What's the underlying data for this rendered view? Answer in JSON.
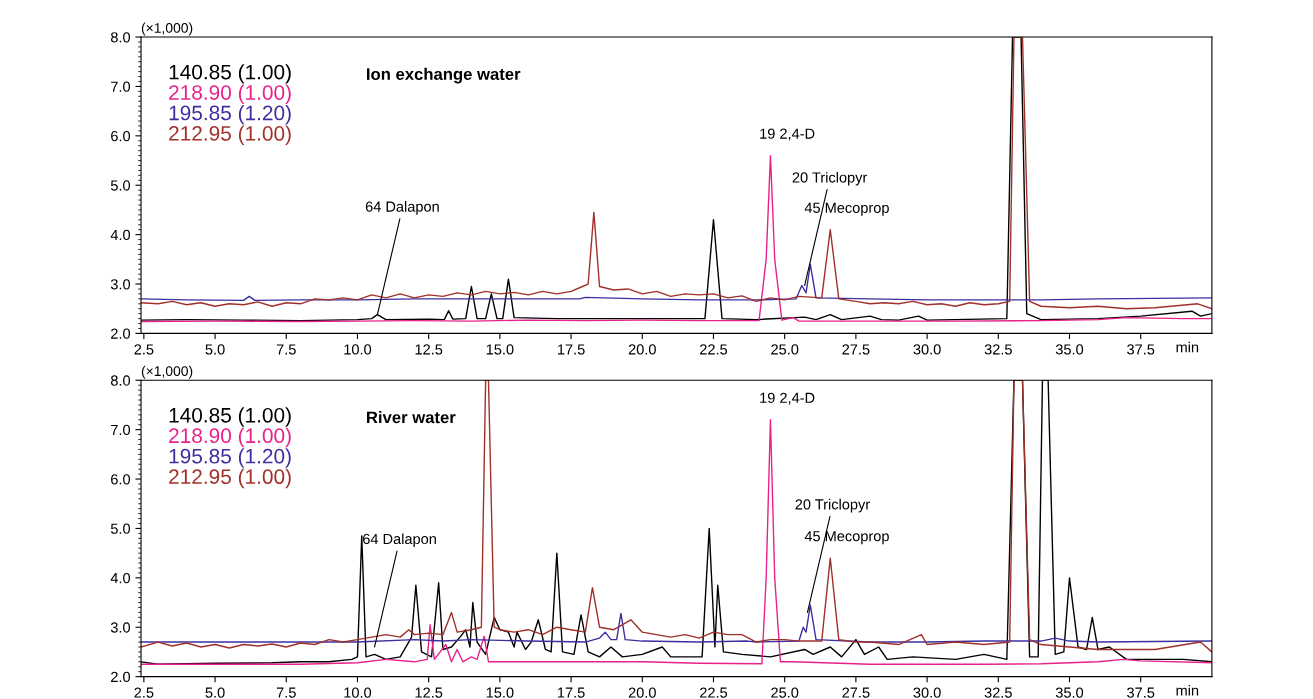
{
  "chart_data": [
    {
      "type": "line",
      "title": "Ion exchange water",
      "ylabel": "(×1,000)",
      "xlabel": "min",
      "legend": "top left",
      "xlim": [
        2.4,
        40.0
      ],
      "ylim": [
        2.0,
        8.0
      ],
      "xticks": [
        {
          "value": 2.5,
          "label": "2.5"
        },
        {
          "value": 5,
          "label": "5.0"
        },
        {
          "value": 7.5,
          "label": "7.5"
        },
        {
          "value": 10,
          "label": "10.0"
        },
        {
          "value": 12.5,
          "label": "12.5"
        },
        {
          "value": 15,
          "label": "15.0"
        },
        {
          "value": 17.5,
          "label": "17.5"
        },
        {
          "value": 20,
          "label": "20.0"
        },
        {
          "value": 22.5,
          "label": "22.5"
        },
        {
          "value": 25,
          "label": "25.0"
        },
        {
          "value": 27.5,
          "label": "27.5"
        },
        {
          "value": 30,
          "label": "30.0"
        },
        {
          "value": 32.5,
          "label": "32.5"
        },
        {
          "value": 35,
          "label": "35.0"
        },
        {
          "value": 37.5,
          "label": "37.5"
        }
      ],
      "yticks": [
        {
          "value": 2,
          "label": "2.0"
        },
        {
          "value": 3,
          "label": "3.0"
        },
        {
          "value": 4,
          "label": "4.0"
        },
        {
          "value": 5,
          "label": "5.0"
        },
        {
          "value": 6,
          "label": "6.0"
        },
        {
          "value": 7,
          "label": "7.0"
        },
        {
          "value": 8,
          "label": "8.0"
        }
      ],
      "annotations": [
        {
          "text": "64 Dalapon",
          "x": 10.7,
          "y": 2.38
        },
        {
          "text": "19 2,4-D",
          "x": 24.5,
          "y": 5.6
        },
        {
          "text": "20 Triclopyr",
          "x": 25.7,
          "y": 2.97
        },
        {
          "text": "45 Mecoprop",
          "x": 26.6,
          "y": 4.1
        }
      ],
      "series": [
        {
          "name": "140.85 (1.00)",
          "color": "#000000",
          "x": [
            2.4,
            4,
            6,
            8,
            10,
            10.5,
            10.7,
            11,
            12.5,
            13.05,
            13.2,
            13.35,
            13.8,
            14.0,
            14.2,
            14.5,
            14.7,
            14.9,
            15.1,
            15.3,
            15.5,
            17,
            19,
            21,
            22.2,
            22.5,
            22.8,
            24,
            25.7,
            26.1,
            26.6,
            27.0,
            28.0,
            28.4,
            29.0,
            29.7,
            30,
            32.8,
            33.0,
            33.3,
            33.5,
            34.0,
            36,
            37.5,
            39.3,
            39.6,
            40.0
          ],
          "values": [
            2.27,
            2.28,
            2.27,
            2.26,
            2.28,
            2.3,
            2.38,
            2.28,
            2.29,
            2.28,
            2.46,
            2.29,
            2.3,
            2.95,
            2.3,
            2.3,
            2.8,
            2.3,
            2.3,
            3.1,
            2.32,
            2.3,
            2.3,
            2.3,
            2.3,
            4.3,
            2.3,
            2.28,
            2.33,
            2.28,
            2.38,
            2.28,
            2.35,
            2.28,
            2.27,
            2.35,
            2.27,
            2.3,
            8.0,
            8.0,
            2.4,
            2.28,
            2.3,
            2.35,
            2.45,
            2.35,
            2.4
          ]
        },
        {
          "name": "218.90 (1.00)",
          "color": "#e8218c",
          "x": [
            2.4,
            5,
            8,
            10,
            12,
            14,
            16,
            18,
            20,
            22,
            24.1,
            24.35,
            24.5,
            24.65,
            24.9,
            25.3,
            25.5,
            28,
            31,
            34,
            36,
            37,
            39,
            40.0
          ],
          "values": [
            2.24,
            2.25,
            2.24,
            2.25,
            2.26,
            2.25,
            2.27,
            2.26,
            2.27,
            2.26,
            2.26,
            3.5,
            5.6,
            3.5,
            2.27,
            2.32,
            2.25,
            2.25,
            2.25,
            2.26,
            2.28,
            2.32,
            2.3,
            2.3
          ]
        },
        {
          "name": "195.85 (1.20)",
          "color": "#3c2fa0",
          "x": [
            2.4,
            4,
            6.0,
            6.2,
            6.4,
            8,
            10,
            12,
            14,
            16,
            17.8,
            18,
            20,
            22,
            24,
            25.4,
            25.6,
            25.75,
            25.9,
            26.1,
            28,
            30,
            32,
            34,
            36,
            40.0
          ],
          "values": [
            2.7,
            2.68,
            2.67,
            2.75,
            2.67,
            2.68,
            2.68,
            2.7,
            2.7,
            2.7,
            2.7,
            2.73,
            2.7,
            2.68,
            2.68,
            2.7,
            2.97,
            2.82,
            3.4,
            2.72,
            2.7,
            2.68,
            2.68,
            2.68,
            2.7,
            2.72
          ]
        },
        {
          "name": "212.95 (1.00)",
          "color": "#a0302a",
          "x": [
            2.4,
            3,
            3.5,
            4,
            4.5,
            5,
            5.5,
            6,
            6.5,
            7,
            7.5,
            8,
            8.5,
            9,
            9.5,
            10,
            10.5,
            11,
            11.5,
            12,
            12.5,
            13,
            13.5,
            14,
            14.5,
            15,
            15.5,
            16,
            16.5,
            17,
            17.5,
            17.9,
            18.1,
            18.3,
            18.5,
            19,
            19.5,
            20,
            20.5,
            21,
            21.5,
            22,
            22.5,
            23,
            23.5,
            24,
            24.5,
            25,
            25.5,
            26.3,
            26.6,
            26.9,
            27.5,
            28,
            28.5,
            29,
            29.5,
            30,
            30.5,
            31,
            31.5,
            32,
            32.5,
            32.9,
            33.05,
            33.35,
            33.6,
            34,
            35,
            36,
            37,
            38,
            39.5,
            40.0
          ],
          "values": [
            2.62,
            2.6,
            2.65,
            2.58,
            2.62,
            2.55,
            2.6,
            2.58,
            2.64,
            2.55,
            2.62,
            2.6,
            2.7,
            2.68,
            2.72,
            2.68,
            2.78,
            2.72,
            2.8,
            2.72,
            2.78,
            2.75,
            2.82,
            2.78,
            2.85,
            2.8,
            2.83,
            2.78,
            2.85,
            2.8,
            2.85,
            2.95,
            3.0,
            4.45,
            2.95,
            2.88,
            2.9,
            2.8,
            2.85,
            2.75,
            2.8,
            2.78,
            2.8,
            2.72,
            2.76,
            2.65,
            2.72,
            2.68,
            2.75,
            2.72,
            4.1,
            2.7,
            2.65,
            2.6,
            2.62,
            2.6,
            2.65,
            2.58,
            2.6,
            2.55,
            2.62,
            2.58,
            2.6,
            2.65,
            8.0,
            8.0,
            2.65,
            2.55,
            2.52,
            2.55,
            2.5,
            2.52,
            2.6,
            2.5
          ]
        }
      ]
    },
    {
      "type": "line",
      "title": "River water",
      "ylabel": "(×1,000)",
      "xlabel": "min",
      "legend": "top left",
      "xlim": [
        2.4,
        40.0
      ],
      "ylim": [
        2.0,
        8.0
      ],
      "xticks": [
        {
          "value": 2.5,
          "label": "2.5"
        },
        {
          "value": 5,
          "label": "5.0"
        },
        {
          "value": 7.5,
          "label": "7.5"
        },
        {
          "value": 10,
          "label": "10.0"
        },
        {
          "value": 12.5,
          "label": "12.5"
        },
        {
          "value": 15,
          "label": "15.0"
        },
        {
          "value": 17.5,
          "label": "17.5"
        },
        {
          "value": 20,
          "label": "20.0"
        },
        {
          "value": 22.5,
          "label": "22.5"
        },
        {
          "value": 25,
          "label": "25.0"
        },
        {
          "value": 27.5,
          "label": "27.5"
        },
        {
          "value": 30,
          "label": "30.0"
        },
        {
          "value": 32.5,
          "label": "32.5"
        },
        {
          "value": 35,
          "label": "35.0"
        },
        {
          "value": 37.5,
          "label": "37.5"
        }
      ],
      "yticks": [
        {
          "value": 2,
          "label": "2.0"
        },
        {
          "value": 3,
          "label": "3.0"
        },
        {
          "value": 4,
          "label": "4.0"
        },
        {
          "value": 5,
          "label": "5.0"
        },
        {
          "value": 6,
          "label": "6.0"
        },
        {
          "value": 7,
          "label": "7.0"
        },
        {
          "value": 8,
          "label": "8.0"
        }
      ],
      "annotations": [
        {
          "text": "64 Dalapon",
          "x": 10.6,
          "y": 2.6
        },
        {
          "text": "19 2,4-D",
          "x": 24.5,
          "y": 7.2
        },
        {
          "text": "20 Triclopyr",
          "x": 25.8,
          "y": 3.3
        },
        {
          "text": "45 Mecoprop",
          "x": 26.6,
          "y": 4.4
        }
      ],
      "series": [
        {
          "name": "140.85 (1.00)",
          "color": "#000000",
          "x": [
            2.4,
            3,
            5,
            7,
            8,
            9,
            9.8,
            10.0,
            10.15,
            10.3,
            10.6,
            11,
            11.5,
            11.9,
            12.05,
            12.25,
            12.6,
            12.85,
            13.0,
            13.3,
            13.6,
            13.8,
            13.95,
            14.05,
            14.2,
            14.5,
            14.8,
            15.0,
            15.3,
            15.5,
            15.6,
            15.9,
            16.1,
            16.35,
            16.6,
            16.8,
            17.0,
            17.2,
            17.6,
            17.85,
            18.1,
            18.5,
            18.9,
            19.3,
            20,
            20.7,
            21,
            22.1,
            22.35,
            22.55,
            22.65,
            22.85,
            23.5,
            24.5,
            25.7,
            26,
            26.6,
            27,
            27.5,
            27.8,
            28.3,
            28.6,
            29.5,
            31,
            32,
            32.8,
            33.05,
            33.35,
            33.6,
            33.9,
            34.05,
            34.25,
            34.5,
            34.8,
            35.0,
            35.3,
            35.6,
            35.8,
            36.0,
            36.4,
            37,
            39,
            40.0
          ],
          "values": [
            2.3,
            2.25,
            2.27,
            2.28,
            2.3,
            2.3,
            2.35,
            2.4,
            4.85,
            2.4,
            2.45,
            2.35,
            2.4,
            2.8,
            3.85,
            2.5,
            2.4,
            3.9,
            2.55,
            2.6,
            2.8,
            2.95,
            2.6,
            3.5,
            2.7,
            2.45,
            3.2,
            2.95,
            2.9,
            2.6,
            2.9,
            2.55,
            2.7,
            3.15,
            2.55,
            2.5,
            4.5,
            2.5,
            2.45,
            3.25,
            2.5,
            2.4,
            2.6,
            2.4,
            2.45,
            2.6,
            2.4,
            2.4,
            5.0,
            2.6,
            3.85,
            2.5,
            2.45,
            2.4,
            2.55,
            2.45,
            2.6,
            2.4,
            2.75,
            2.45,
            2.6,
            2.35,
            2.4,
            2.35,
            2.45,
            2.35,
            8.0,
            8.0,
            2.4,
            2.4,
            8.0,
            8.0,
            2.45,
            2.5,
            4.0,
            2.6,
            2.55,
            3.2,
            2.55,
            2.6,
            2.35,
            2.35,
            2.3
          ]
        },
        {
          "name": "218.90 (1.00)",
          "color": "#e8218c",
          "x": [
            2.4,
            5,
            8,
            10,
            11,
            12,
            12.45,
            12.55,
            12.7,
            13.1,
            13.3,
            13.5,
            13.7,
            14.0,
            14.2,
            14.45,
            14.6,
            16,
            18,
            20,
            22,
            24.2,
            24.35,
            24.5,
            24.65,
            24.85,
            25.3,
            28,
            30,
            32,
            34,
            36,
            36.9,
            37.5,
            40.0
          ],
          "values": [
            2.25,
            2.25,
            2.25,
            2.28,
            2.35,
            2.3,
            2.35,
            3.05,
            2.35,
            2.65,
            2.3,
            2.55,
            2.3,
            2.4,
            2.35,
            2.82,
            2.3,
            2.3,
            2.3,
            2.3,
            2.27,
            2.26,
            4.0,
            7.2,
            4.0,
            2.3,
            2.3,
            2.25,
            2.25,
            2.25,
            2.26,
            2.3,
            2.35,
            2.32,
            2.28
          ]
        },
        {
          "name": "195.85 (1.20)",
          "color": "#3c2fa0",
          "x": [
            2.4,
            5,
            8,
            10,
            12,
            13,
            14,
            16,
            18,
            18.5,
            18.7,
            18.9,
            19.1,
            19.25,
            19.4,
            20,
            22,
            23.7,
            24,
            25.5,
            25.65,
            25.75,
            25.9,
            26.1,
            28,
            30,
            32,
            34,
            34.5,
            35,
            36,
            40.0
          ],
          "values": [
            2.7,
            2.7,
            2.7,
            2.7,
            2.75,
            2.72,
            2.75,
            2.72,
            2.7,
            2.78,
            2.9,
            2.75,
            2.75,
            3.28,
            2.75,
            2.72,
            2.7,
            2.72,
            2.7,
            2.72,
            3.0,
            2.9,
            3.45,
            2.75,
            2.7,
            2.7,
            2.72,
            2.72,
            2.78,
            2.72,
            2.7,
            2.72
          ]
        },
        {
          "name": "212.95 (1.00)",
          "color": "#a0302a",
          "x": [
            2.4,
            3,
            3.5,
            4,
            4.5,
            5,
            5.5,
            6,
            6.5,
            7,
            7.5,
            8,
            8.5,
            9,
            9.5,
            10,
            10.5,
            11,
            11.5,
            11.8,
            12,
            12.5,
            13,
            13.3,
            13.5,
            14.0,
            14.35,
            14.5,
            14.6,
            14.8,
            15,
            15.5,
            16,
            16.5,
            17,
            17.5,
            18,
            18.25,
            18.5,
            19,
            19.6,
            20,
            20.5,
            21,
            21.5,
            22,
            22.5,
            23,
            23.5,
            24,
            24.5,
            25,
            25.5,
            26.3,
            26.6,
            26.9,
            27.5,
            28,
            29,
            29.8,
            30,
            31,
            32,
            32.9,
            33.05,
            33.35,
            33.6,
            34,
            35,
            36,
            37,
            38,
            39.6,
            40.0
          ],
          "values": [
            2.6,
            2.7,
            2.62,
            2.68,
            2.6,
            2.65,
            2.58,
            2.65,
            2.62,
            2.66,
            2.6,
            2.68,
            2.65,
            2.75,
            2.7,
            2.75,
            2.8,
            2.85,
            2.8,
            2.95,
            2.85,
            2.88,
            2.85,
            3.3,
            2.9,
            2.95,
            3.0,
            8.0,
            8.0,
            3.0,
            2.95,
            2.9,
            2.95,
            2.85,
            3.0,
            2.95,
            2.9,
            3.8,
            3.0,
            2.95,
            3.15,
            2.9,
            2.85,
            2.8,
            2.85,
            2.78,
            2.9,
            2.85,
            2.85,
            2.7,
            2.75,
            2.75,
            2.72,
            2.72,
            4.4,
            2.75,
            2.7,
            2.7,
            2.65,
            2.85,
            2.65,
            2.7,
            2.65,
            2.7,
            8.0,
            8.0,
            2.75,
            2.65,
            2.6,
            2.55,
            2.55,
            2.55,
            2.7,
            2.5
          ]
        }
      ]
    }
  ]
}
